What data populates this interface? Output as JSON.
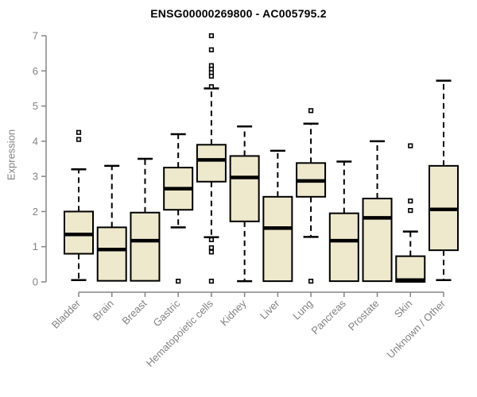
{
  "chart_data": {
    "type": "boxplot",
    "title": "ENSG00000269800 - AC005795.2",
    "ylabel": "Expression",
    "xlabel": "",
    "ylim": [
      0,
      7
    ],
    "yticks": [
      0,
      1,
      2,
      3,
      4,
      5,
      6,
      7
    ],
    "grid": "off",
    "legend": "none",
    "categories": [
      "Bladder",
      "Brain",
      "Breast",
      "Gastric",
      "Hematopoietic cells",
      "Kidney",
      "Liver",
      "Lung",
      "Pancreas",
      "Prostate",
      "Skin",
      "Unknown / Other"
    ],
    "boxes": [
      {
        "category": "Bladder",
        "low": 0.05,
        "q1": 0.8,
        "median": 1.35,
        "q3": 2.0,
        "high": 3.2,
        "outliers": [
          4.05,
          4.25
        ]
      },
      {
        "category": "Brain",
        "low": 0.03,
        "q1": 0.03,
        "median": 0.92,
        "q3": 1.55,
        "high": 3.3,
        "outliers": []
      },
      {
        "category": "Breast",
        "low": 0.03,
        "q1": 0.03,
        "median": 1.17,
        "q3": 1.97,
        "high": 3.5,
        "outliers": []
      },
      {
        "category": "Gastric",
        "low": 1.55,
        "q1": 2.05,
        "median": 2.65,
        "q3": 3.25,
        "high": 4.2,
        "outliers": [
          0.02
        ]
      },
      {
        "category": "Hematopoietic cells",
        "low": 1.27,
        "q1": 2.85,
        "median": 3.47,
        "q3": 3.9,
        "high": 5.5,
        "outliers": [
          7.0,
          6.6,
          6.15,
          6.05,
          5.95,
          5.85,
          5.55,
          1.2,
          0.97,
          0.85,
          0.02
        ]
      },
      {
        "category": "Kidney",
        "low": 0.02,
        "q1": 1.72,
        "median": 2.97,
        "q3": 3.58,
        "high": 4.42,
        "outliers": []
      },
      {
        "category": "Liver",
        "low": 0.02,
        "q1": 0.02,
        "median": 1.53,
        "q3": 2.42,
        "high": 3.73,
        "outliers": []
      },
      {
        "category": "Lung",
        "low": 1.28,
        "q1": 2.42,
        "median": 2.87,
        "q3": 3.38,
        "high": 4.5,
        "outliers": [
          4.87,
          0.02
        ]
      },
      {
        "category": "Pancreas",
        "low": 0.02,
        "q1": 0.02,
        "median": 1.17,
        "q3": 1.95,
        "high": 3.42,
        "outliers": []
      },
      {
        "category": "Prostate",
        "low": 0.02,
        "q1": 0.02,
        "median": 1.82,
        "q3": 2.37,
        "high": 4.0,
        "outliers": []
      },
      {
        "category": "Skin",
        "low": 0.0,
        "q1": 0.0,
        "median": 0.05,
        "q3": 0.73,
        "high": 1.43,
        "outliers": [
          3.87,
          2.3,
          2.03
        ]
      },
      {
        "category": "Unknown / Other",
        "low": 0.05,
        "q1": 0.9,
        "median": 2.06,
        "q3": 3.3,
        "high": 5.72,
        "outliers": []
      }
    ],
    "colors": {
      "box_fill": "#EEE8CD",
      "box_stroke": "#000000",
      "median": "#000000",
      "whisker": "#000000",
      "outlier": "#000000",
      "axis": "#858585",
      "axis_text": "#828282",
      "title_text": "#000000",
      "background": "#FFFFFF"
    }
  }
}
